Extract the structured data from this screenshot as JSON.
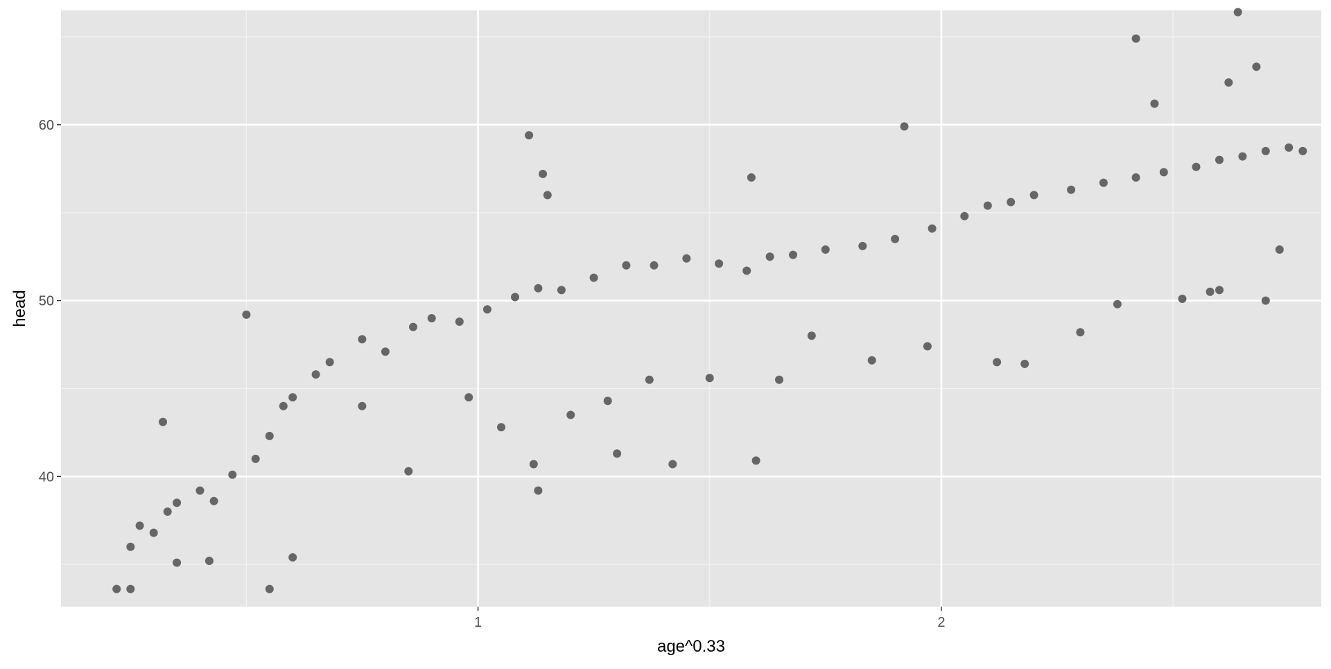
{
  "chart_data": {
    "type": "scatter",
    "title": "",
    "xlabel": "age^0.33",
    "ylabel": "head",
    "xlim": [
      0.1,
      2.82
    ],
    "ylim": [
      32.6,
      66.5
    ],
    "x_ticks": [
      1,
      2
    ],
    "x_tick_labels": [
      "1",
      "2"
    ],
    "y_ticks": [
      40,
      50,
      60
    ],
    "y_tick_labels": [
      "40",
      "50",
      "60"
    ],
    "grid": true,
    "legend": "none",
    "point_color": "#666666",
    "panel_color": "#e5e5e5",
    "x": [
      0.22,
      0.25,
      0.25,
      0.27,
      0.3,
      0.33,
      0.35,
      0.4,
      0.43,
      0.47,
      0.52,
      0.55,
      0.58,
      0.6,
      0.65,
      0.68,
      0.75,
      0.8,
      0.86,
      0.9,
      0.96,
      1.02,
      1.08,
      1.13,
      1.18,
      1.25,
      1.32,
      1.38,
      1.45,
      1.52,
      1.58,
      1.63,
      1.68,
      1.75,
      1.83,
      1.9,
      1.98,
      2.05,
      2.1,
      2.15,
      2.2,
      2.28,
      2.35,
      2.42,
      2.48,
      2.55,
      2.6,
      2.65,
      2.7,
      2.75,
      2.78,
      0.32,
      0.5,
      0.55,
      1.11,
      1.14,
      1.15,
      1.12,
      1.13,
      1.3,
      1.42,
      1.6,
      1.59,
      1.65,
      1.92,
      1.97,
      2.3,
      2.42,
      2.46,
      2.6,
      2.64,
      2.68,
      2.62,
      2.7,
      0.35,
      0.42,
      0.6,
      0.75,
      0.85,
      0.98,
      1.05,
      1.2,
      1.28,
      1.37,
      1.5,
      1.72,
      1.85,
      2.12,
      2.18,
      2.38,
      2.52,
      2.58,
      2.73
    ],
    "y": [
      33.6,
      33.6,
      36,
      37.2,
      36.8,
      38,
      38.5,
      39.2,
      38.6,
      40.1,
      41,
      42.3,
      44,
      44.5,
      45.8,
      46.5,
      47.8,
      47.1,
      48.5,
      49,
      48.8,
      49.5,
      50.2,
      50.7,
      50.6,
      51.3,
      52,
      52,
      52.4,
      52.1,
      51.7,
      52.5,
      52.6,
      52.9,
      53.1,
      53.5,
      54.1,
      54.8,
      55.4,
      55.6,
      56,
      56.3,
      56.7,
      57,
      57.3,
      57.6,
      58,
      58.2,
      58.5,
      58.7,
      58.5,
      43.1,
      49.2,
      33.6,
      59.4,
      57.2,
      56,
      40.7,
      39.2,
      41.3,
      40.7,
      40.9,
      57,
      45.5,
      59.9,
      47.4,
      48.2,
      64.9,
      61.2,
      50.6,
      66.4,
      63.3,
      62.4,
      50,
      35.1,
      35.2,
      35.4,
      44,
      40.3,
      44.5,
      42.8,
      43.5,
      44.3,
      45.5,
      45.6,
      48,
      46.6,
      46.5,
      46.4,
      49.8,
      50.1,
      50.5,
      52.9
    ]
  }
}
